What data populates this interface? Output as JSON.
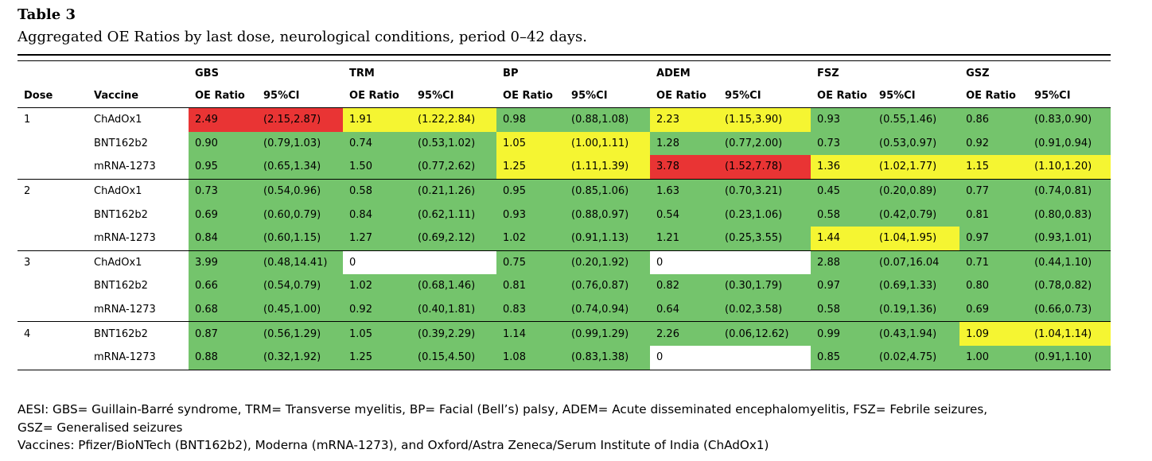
{
  "caption": {
    "label": "Table 3",
    "title": "Aggregated OE Ratios by last dose, neurological conditions, period 0–42 days."
  },
  "groups": [
    "GBS",
    "TRM",
    "BP",
    "ADEM",
    "FSZ",
    "GSZ"
  ],
  "columns": {
    "dose": "Dose",
    "vaccine": "Vaccine",
    "oe": "OE Ratio",
    "ci": "95%CI"
  },
  "colors": {
    "green": "#74c46c",
    "yellow": "#f5f532",
    "red": "#e93434",
    "white": "#ffffff"
  },
  "rows": [
    {
      "dose": "1",
      "vaccine": "ChAdOx1",
      "cells": [
        {
          "oe": "2.49",
          "ci": "(2.15,2.87)",
          "color": "red"
        },
        {
          "oe": "1.91",
          "ci": "(1.22,2.84)",
          "color": "yellow"
        },
        {
          "oe": "0.98",
          "ci": "(0.88,1.08)",
          "color": "green"
        },
        {
          "oe": "2.23",
          "ci": "(1.15,3.90)",
          "color": "yellow"
        },
        {
          "oe": "0.93",
          "ci": "(0.55,1.46)",
          "color": "green"
        },
        {
          "oe": "0.86",
          "ci": "(0.83,0.90)",
          "color": "green"
        }
      ]
    },
    {
      "dose": "",
      "vaccine": "BNT162b2",
      "cells": [
        {
          "oe": "0.90",
          "ci": "(0.79,1.03)",
          "color": "green"
        },
        {
          "oe": "0.74",
          "ci": "(0.53,1.02)",
          "color": "green"
        },
        {
          "oe": "1.05",
          "ci": "(1.00,1.11)",
          "color": "yellow"
        },
        {
          "oe": "1.28",
          "ci": "(0.77,2.00)",
          "color": "green"
        },
        {
          "oe": "0.73",
          "ci": "(0.53,0.97)",
          "color": "green"
        },
        {
          "oe": "0.92",
          "ci": "(0.91,0.94)",
          "color": "green"
        }
      ]
    },
    {
      "dose": "",
      "vaccine": "mRNA-1273",
      "cells": [
        {
          "oe": "0.95",
          "ci": "(0.65,1.34)",
          "color": "green"
        },
        {
          "oe": "1.50",
          "ci": "(0.77,2.62)",
          "color": "green"
        },
        {
          "oe": "1.25",
          "ci": "(1.11,1.39)",
          "color": "yellow"
        },
        {
          "oe": "3.78",
          "ci": "(1.52,7.78)",
          "color": "red"
        },
        {
          "oe": "1.36",
          "ci": "(1.02,1.77)",
          "color": "yellow"
        },
        {
          "oe": "1.15",
          "ci": "(1.10,1.20)",
          "color": "yellow"
        }
      ]
    },
    {
      "dose": "2",
      "vaccine": "ChAdOx1",
      "cells": [
        {
          "oe": "0.73",
          "ci": "(0.54,0.96)",
          "color": "green"
        },
        {
          "oe": "0.58",
          "ci": "(0.21,1.26)",
          "color": "green"
        },
        {
          "oe": "0.95",
          "ci": "(0.85,1.06)",
          "color": "green"
        },
        {
          "oe": "1.63",
          "ci": "(0.70,3.21)",
          "color": "green"
        },
        {
          "oe": "0.45",
          "ci": "(0.20,0.89)",
          "color": "green"
        },
        {
          "oe": "0.77",
          "ci": "(0.74,0.81)",
          "color": "green"
        }
      ]
    },
    {
      "dose": "",
      "vaccine": "BNT162b2",
      "cells": [
        {
          "oe": "0.69",
          "ci": "(0.60,0.79)",
          "color": "green"
        },
        {
          "oe": "0.84",
          "ci": "(0.62,1.11)",
          "color": "green"
        },
        {
          "oe": "0.93",
          "ci": "(0.88,0.97)",
          "color": "green"
        },
        {
          "oe": "0.54",
          "ci": "(0.23,1.06)",
          "color": "green"
        },
        {
          "oe": "0.58",
          "ci": "(0.42,0.79)",
          "color": "green"
        },
        {
          "oe": "0.81",
          "ci": "(0.80,0.83)",
          "color": "green"
        }
      ]
    },
    {
      "dose": "",
      "vaccine": "mRNA-1273",
      "cells": [
        {
          "oe": "0.84",
          "ci": "(0.60,1.15)",
          "color": "green"
        },
        {
          "oe": "1.27",
          "ci": "(0.69,2.12)",
          "color": "green"
        },
        {
          "oe": "1.02",
          "ci": "(0.91,1.13)",
          "color": "green"
        },
        {
          "oe": "1.21",
          "ci": "(0.25,3.55)",
          "color": "green"
        },
        {
          "oe": "1.44",
          "ci": "(1.04,1.95)",
          "color": "yellow"
        },
        {
          "oe": "0.97",
          "ci": "(0.93,1.01)",
          "color": "green"
        }
      ]
    },
    {
      "dose": "3",
      "vaccine": "ChAdOx1",
      "cells": [
        {
          "oe": "3.99",
          "ci": "(0.48,14.41)",
          "color": "green"
        },
        {
          "oe": "0",
          "ci": "",
          "color": "white"
        },
        {
          "oe": "0.75",
          "ci": "(0.20,1.92)",
          "color": "green"
        },
        {
          "oe": "0",
          "ci": "",
          "color": "white"
        },
        {
          "oe": "2.88",
          "ci": "(0.07,16.04",
          "color": "green"
        },
        {
          "oe": "0.71",
          "ci": "(0.44,1.10)",
          "color": "green"
        }
      ]
    },
    {
      "dose": "",
      "vaccine": "BNT162b2",
      "cells": [
        {
          "oe": "0.66",
          "ci": "(0.54,0.79)",
          "color": "green"
        },
        {
          "oe": "1.02",
          "ci": "(0.68,1.46)",
          "color": "green"
        },
        {
          "oe": "0.81",
          "ci": "(0.76,0.87)",
          "color": "green"
        },
        {
          "oe": "0.82",
          "ci": "(0.30,1.79)",
          "color": "green"
        },
        {
          "oe": "0.97",
          "ci": "(0.69,1.33)",
          "color": "green"
        },
        {
          "oe": "0.80",
          "ci": "(0.78,0.82)",
          "color": "green"
        }
      ]
    },
    {
      "dose": "",
      "vaccine": "mRNA-1273",
      "cells": [
        {
          "oe": "0.68",
          "ci": "(0.45,1.00)",
          "color": "green"
        },
        {
          "oe": "0.92",
          "ci": "(0.40,1.81)",
          "color": "green"
        },
        {
          "oe": "0.83",
          "ci": "(0.74,0.94)",
          "color": "green"
        },
        {
          "oe": "0.64",
          "ci": "(0.02,3.58)",
          "color": "green"
        },
        {
          "oe": "0.58",
          "ci": "(0.19,1.36)",
          "color": "green"
        },
        {
          "oe": "0.69",
          "ci": "(0.66,0.73)",
          "color": "green"
        }
      ]
    },
    {
      "dose": "4",
      "vaccine": "BNT162b2",
      "cells": [
        {
          "oe": "0.87",
          "ci": "(0.56,1.29)",
          "color": "green"
        },
        {
          "oe": "1.05",
          "ci": "(0.39,2.29)",
          "color": "green"
        },
        {
          "oe": "1.14",
          "ci": "(0.99,1.29)",
          "color": "green"
        },
        {
          "oe": "2.26",
          "ci": "(0.06,12.62)",
          "color": "green"
        },
        {
          "oe": "0.99",
          "ci": "(0.43,1.94)",
          "color": "green"
        },
        {
          "oe": "1.09",
          "ci": "(1.04,1.14)",
          "color": "yellow"
        }
      ]
    },
    {
      "dose": "",
      "vaccine": "mRNA-1273",
      "cells": [
        {
          "oe": "0.88",
          "ci": "(0.32,1.92)",
          "color": "green"
        },
        {
          "oe": "1.25",
          "ci": "(0.15,4.50)",
          "color": "green"
        },
        {
          "oe": "1.08",
          "ci": "(0.83,1.38)",
          "color": "green"
        },
        {
          "oe": "0",
          "ci": "",
          "color": "white"
        },
        {
          "oe": "0.85",
          "ci": "(0.02,4.75)",
          "color": "green"
        },
        {
          "oe": "1.00",
          "ci": "(0.91,1.10)",
          "color": "green"
        }
      ]
    }
  ],
  "notes": [
    "AESI: GBS= Guillain-Barré syndrome, TRM= Transverse myelitis, BP= Facial (Bell’s) palsy, ADEM= Acute disseminated encephalomyelitis, FSZ= Febrile seizures,",
    "GSZ= Generalised seizures",
    "Vaccines: Pfizer/BioNTech (BNT162b2), Moderna (mRNA-1273), and Oxford/Astra Zeneca/Serum Institute of India (ChAdOx1)"
  ]
}
